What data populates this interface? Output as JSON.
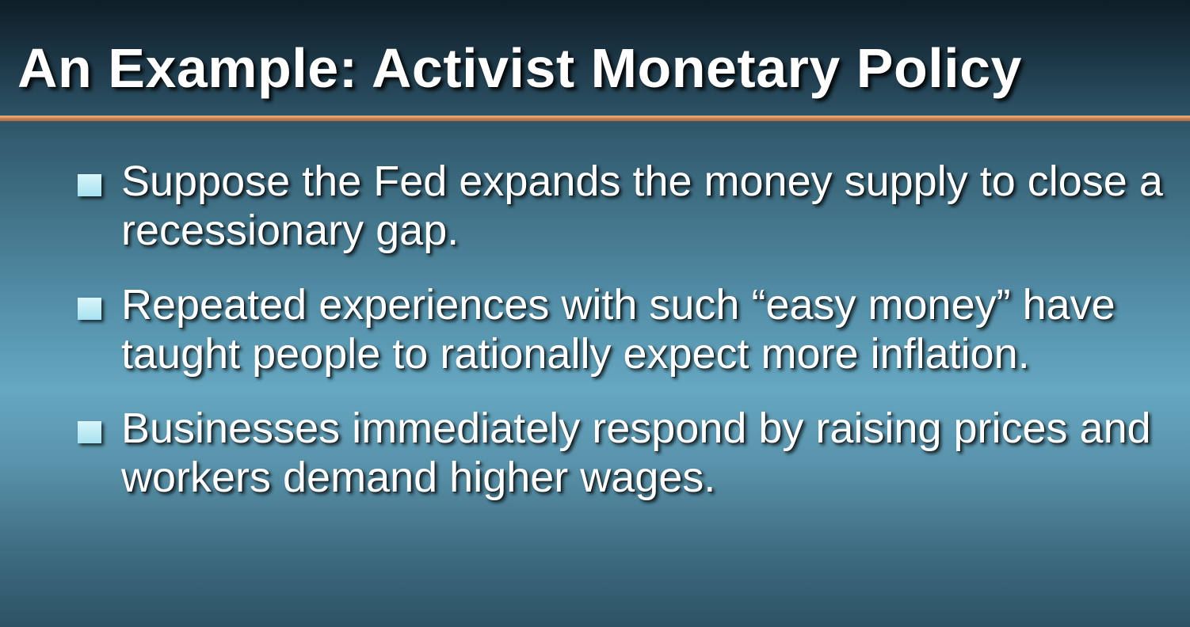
{
  "slide": {
    "title": "An Example: Activist Monetary Policy",
    "bullets": [
      {
        "text": "Suppose the Fed expands the money supply to close a recessionary gap.",
        "marker_icon": "square-bullet-icon"
      },
      {
        "text": "Repeated experiences with such “easy money” have taught people to rationally expect more inflation.",
        "marker_icon": "square-bullet-icon"
      },
      {
        "text": "Businesses immediately respond by raising prices and workers demand higher wages.",
        "marker_icon": "square-bullet-icon"
      }
    ],
    "colors": {
      "title_text": "#ffffff",
      "divider": "#c67e49",
      "bullet_marker": "#bfeaf5",
      "background_top": "#0f1d26",
      "background_mid": "#66a7c1"
    }
  }
}
